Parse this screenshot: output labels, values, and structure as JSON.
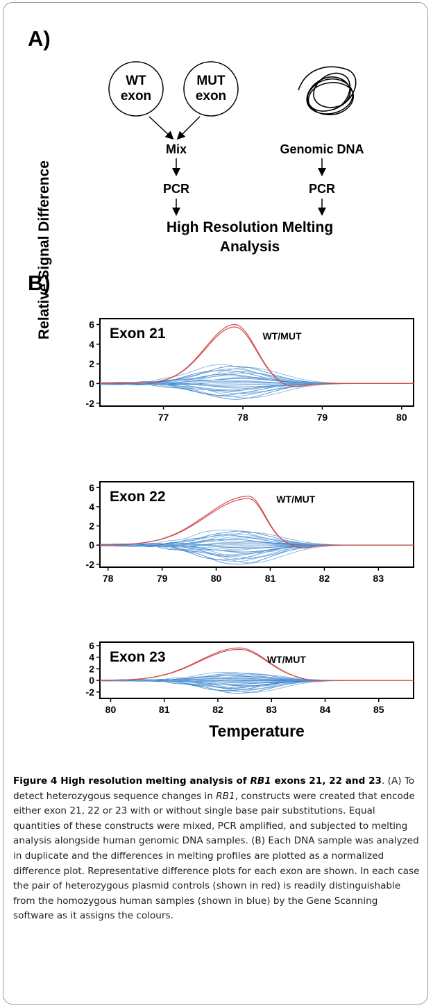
{
  "panel_a": {
    "label": "A)",
    "circle_wt": "WT exon",
    "circle_mut": "MUT exon",
    "mix": "Mix",
    "genomic": "Genomic DNA",
    "pcr_left": "PCR",
    "pcr_right": "PCR",
    "hrm_line1": "High Resolution Melting",
    "hrm_line2": "Analysis"
  },
  "panel_b": {
    "label": "B)",
    "y_axis_label": "Relative Signal Difference",
    "x_axis_label": "Temperature"
  },
  "chart_data": [
    {
      "type": "line",
      "title": "Exon 21",
      "annotation": "WT/MUT",
      "x_ticks": [
        77,
        78,
        79,
        80
      ],
      "y_ticks": [
        6,
        4,
        2,
        0,
        -2
      ],
      "xlim": [
        76.2,
        80.15
      ],
      "ylim": [
        -2.3,
        6.6
      ],
      "series": [
        {
          "name": "WT/MUT",
          "color": "#d0504f",
          "peak_x": 77.9,
          "peak_y": 6.0,
          "start": 77.0,
          "end": 78.5,
          "dip_x": 78.6,
          "dip_y": -0.4
        },
        {
          "color": "#3d86cc",
          "peak_x": 77.9,
          "max_amp": 1.9,
          "min_amp": -1.6,
          "start": 76.6,
          "end": 78.7
        }
      ]
    },
    {
      "type": "line",
      "title": "Exon 22",
      "annotation": "WT/MUT",
      "x_ticks": [
        78,
        79,
        80,
        81,
        82,
        83
      ],
      "y_ticks": [
        6,
        4,
        2,
        0,
        -2
      ],
      "xlim": [
        77.85,
        83.65
      ],
      "ylim": [
        -2.3,
        6.6
      ],
      "series": [
        {
          "name": "WT/MUT",
          "color": "#d0504f",
          "peak_x": 80.6,
          "peak_y": 5.1,
          "start": 78.7,
          "end": 81.3,
          "dip_x": 81.6,
          "dip_y": -0.3
        },
        {
          "color": "#3d86cc",
          "peak_x": 80.4,
          "max_amp": 1.6,
          "min_amp": -2.0,
          "start": 78.6,
          "end": 81.6
        }
      ]
    },
    {
      "type": "line",
      "title": "Exon 23",
      "annotation": "WT/MUT",
      "x_ticks": [
        80,
        81,
        82,
        83,
        84,
        85
      ],
      "y_ticks": [
        6,
        4,
        2,
        0,
        -2
      ],
      "xlim": [
        79.8,
        85.65
      ],
      "ylim": [
        -3.1,
        6.6
      ],
      "series": [
        {
          "name": "WT/MUT",
          "color": "#d0504f",
          "peak_x": 82.4,
          "peak_y": 5.6,
          "start": 80.6,
          "end": 83.6,
          "dip_x": 83.8,
          "dip_y": -0.2
        },
        {
          "color": "#3d86cc",
          "peak_x": 82.4,
          "max_amp": 1.4,
          "min_amp": -2.2,
          "start": 80.7,
          "end": 83.6
        }
      ]
    }
  ],
  "caption": {
    "fig_label": "Figure 4 High resolution melting analysis of ",
    "gene": "RB1",
    "fig_title_rest": " exons 21, 22 and 23",
    "text_a1": ". (A) To detect heterozygous sequence changes in ",
    "gene2": "RB1",
    "text_a2": ", constructs were created that encode either exon 21, 22 or 23 with or without single base pair substitutions. Equal quantities of these constructs were mixed, PCR amplified, and subjected to melting analysis alongside human genomic DNA samples. (B) Each DNA sample was analyzed in duplicate and the differences in melting profiles are plotted as a normalized difference plot. Representative difference plots for each exon are shown. In each case the pair of heterozygous plasmid controls (shown in red) is readily distinguishable from the homozygous human samples (shown in blue) by the Gene Scanning software as it assigns the colours."
  }
}
